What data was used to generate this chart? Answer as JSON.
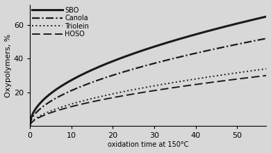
{
  "xlabel": "oxidation time at 150°C",
  "ylabel": "Oxypolymers, %",
  "xlim": [
    0,
    57
  ],
  "ylim": [
    0,
    72
  ],
  "xticks": [
    0,
    10,
    20,
    30,
    40,
    50
  ],
  "yticks": [
    20,
    40,
    60
  ],
  "labels": [
    "SBO",
    "Canola",
    "Triolein",
    "HOSO"
  ],
  "curve_A": [
    65.0,
    52.0,
    34.0,
    30.0
  ],
  "curve_n": [
    0.5,
    0.52,
    0.55,
    0.55
  ],
  "linewidths": [
    2.2,
    1.6,
    1.4,
    1.4
  ],
  "color": "#1a1a1a",
  "background_color": "#d8d8d8",
  "font_size": 8.5
}
